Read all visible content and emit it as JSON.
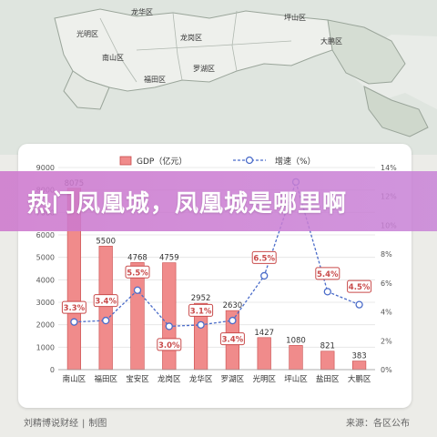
{
  "map": {
    "districts": [
      "龙华区",
      "坪山区",
      "光明区",
      "龙岗区",
      "南山区",
      "罗湖区",
      "大鹏区",
      "福田区"
    ]
  },
  "banner": {
    "title": "热门凤凰城，凤凰城是哪里啊"
  },
  "footer": {
    "author": "刘精博说财经",
    "separator": "|",
    "credit": "制图",
    "source": "来源：各区公布"
  },
  "colors": {
    "bar_fill": "#f08b8b",
    "bar_stroke": "#c94b4b",
    "line": "#4b6cc9",
    "label_border": "#c94b4b",
    "label_text": "#c94b4b"
  },
  "chart_data": {
    "type": "bar",
    "categories": [
      "南山区",
      "福田区",
      "宝安区",
      "龙岗区",
      "龙华区",
      "罗湖区",
      "光明区",
      "坪山区",
      "盐田区",
      "大鹏区"
    ],
    "series": [
      {
        "name": "GDP（亿元）",
        "type": "bar",
        "axis": "left",
        "values": [
          8075,
          5500,
          4768,
          4759,
          2952,
          2630,
          1427,
          1080,
          821,
          383
        ],
        "labels": [
          "8075",
          "5500",
          "4768",
          "4759",
          "2952",
          "2630",
          "1427",
          "1080",
          "821",
          "383"
        ]
      },
      {
        "name": "增速（%）",
        "type": "line",
        "axis": "right",
        "values": [
          3.3,
          3.4,
          5.5,
          3.0,
          3.1,
          3.4,
          6.5,
          13.0,
          5.4,
          4.5
        ],
        "labels": [
          "3.3%",
          "3.4%",
          "5.5%",
          "3.0%",
          "3.1%",
          "3.4%",
          "6.5%",
          "",
          "5.4%",
          "4.5%"
        ]
      }
    ],
    "y_left": {
      "ylim": [
        0,
        9000
      ],
      "ticks": [
        "0",
        "1000",
        "2000",
        "3000",
        "4000",
        "5000",
        "6000",
        "7000",
        "8000",
        "9000"
      ]
    },
    "y_right": {
      "ylim": [
        0,
        14
      ],
      "ticks": [
        "0%",
        "2%",
        "4%",
        "6%",
        "8%",
        "10%",
        "12%",
        "14%"
      ]
    },
    "grid": true,
    "legend": "top"
  }
}
